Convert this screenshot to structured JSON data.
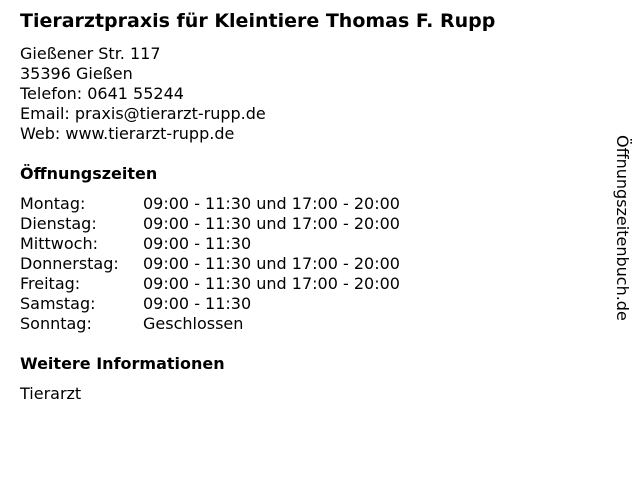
{
  "title": "Tierarztpraxis für Kleintiere Thomas F. Rupp",
  "address": [
    "Gießener Str. 117",
    "35396 Gießen",
    "Telefon: 0641 55244",
    "Email: praxis@tierarzt-rupp.de",
    "Web: www.tierarzt-rupp.de"
  ],
  "hours_heading": "Öffnungszeiten",
  "hours": [
    {
      "day": "Montag:",
      "time": "09:00 - 11:30 und 17:00 - 20:00"
    },
    {
      "day": "Dienstag:",
      "time": "09:00 - 11:30 und 17:00 - 20:00"
    },
    {
      "day": "Mittwoch:",
      "time": "09:00 - 11:30"
    },
    {
      "day": "Donnerstag:",
      "time": "09:00 - 11:30 und 17:00 - 20:00"
    },
    {
      "day": "Freitag:",
      "time": "09:00 - 11:30 und 17:00 - 20:00"
    },
    {
      "day": "Samstag:",
      "time": "09:00 - 11:30"
    },
    {
      "day": "Sonntag:",
      "time": "Geschlossen"
    }
  ],
  "info_heading": "Weitere Informationen",
  "info": "Tierarzt",
  "watermark": "Öffnungszeitenbuch.de"
}
